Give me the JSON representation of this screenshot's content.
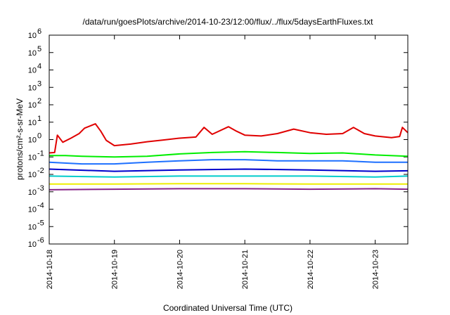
{
  "chart_data": {
    "type": "line",
    "title": "/data/run/goesPlots/archive/2014-10-23/12:00/flux/../flux/5daysEarthFluxes.txt",
    "xlabel": "Coordinated Universal Time (UTC)",
    "ylabel": "protons/cm²-s-sr-MeV",
    "y_scale": "log",
    "ylim": [
      1e-06,
      1000000.0
    ],
    "xlim": [
      "2014-10-18",
      "2014-10-23 12:00"
    ],
    "grid": false,
    "legend": "none",
    "y_ticks": [
      {
        "base": "10",
        "exp": "6"
      },
      {
        "base": "10",
        "exp": "5"
      },
      {
        "base": "10",
        "exp": "4"
      },
      {
        "base": "10",
        "exp": "3"
      },
      {
        "base": "10",
        "exp": "2"
      },
      {
        "base": "10",
        "exp": "1"
      },
      {
        "base": "10",
        "exp": "0"
      },
      {
        "base": "10",
        "exp": "-1"
      },
      {
        "base": "10",
        "exp": "-2"
      },
      {
        "base": "10",
        "exp": "-3"
      },
      {
        "base": "10",
        "exp": "-4"
      },
      {
        "base": "10",
        "exp": "-5"
      },
      {
        "base": "10",
        "exp": "-6"
      }
    ],
    "x_ticks": [
      "2014-10-18",
      "2014-10-19",
      "2014-10-20",
      "2014-10-21",
      "2014-10-22",
      "2014-10-23"
    ],
    "series": [
      {
        "color": "#e00000",
        "points": [
          [
            "2014-10-18 00:00",
            0.17
          ],
          [
            "2014-10-18 02:00",
            0.18
          ],
          [
            "2014-10-18 03:00",
            1.8
          ],
          [
            "2014-10-18 05:00",
            0.7
          ],
          [
            "2014-10-18 08:00",
            1.2
          ],
          [
            "2014-10-18 11:00",
            2.2
          ],
          [
            "2014-10-18 13:00",
            4.5
          ],
          [
            "2014-10-18 15:00",
            6.0
          ],
          [
            "2014-10-18 17:00",
            8.0
          ],
          [
            "2014-10-18 19:00",
            3.0
          ],
          [
            "2014-10-18 21:00",
            0.9
          ],
          [
            "2014-10-19 00:00",
            0.45
          ],
          [
            "2014-10-19 06:00",
            0.55
          ],
          [
            "2014-10-19 12:00",
            0.75
          ],
          [
            "2014-10-19 18:00",
            0.95
          ],
          [
            "2014-10-20 00:00",
            1.2
          ],
          [
            "2014-10-20 06:00",
            1.4
          ],
          [
            "2014-10-20 09:00",
            5.0
          ],
          [
            "2014-10-20 12:00",
            2.0
          ],
          [
            "2014-10-20 18:00",
            5.5
          ],
          [
            "2014-10-20 21:00",
            3.0
          ],
          [
            "2014-10-21 00:00",
            1.8
          ],
          [
            "2014-10-21 06:00",
            1.6
          ],
          [
            "2014-10-21 12:00",
            2.2
          ],
          [
            "2014-10-21 18:00",
            4.0
          ],
          [
            "2014-10-22 00:00",
            2.5
          ],
          [
            "2014-10-22 06:00",
            2.0
          ],
          [
            "2014-10-22 12:00",
            2.2
          ],
          [
            "2014-10-22 16:00",
            5.0
          ],
          [
            "2014-10-22 20:00",
            2.2
          ],
          [
            "2014-10-23 00:00",
            1.6
          ],
          [
            "2014-10-23 06:00",
            1.3
          ],
          [
            "2014-10-23 09:00",
            1.5
          ],
          [
            "2014-10-23 10:00",
            5.0
          ],
          [
            "2014-10-23 12:00",
            2.5
          ]
        ]
      },
      {
        "color": "#00ee00",
        "points": [
          [
            "2014-10-18 00:00",
            0.12
          ],
          [
            "2014-10-18 06:00",
            0.12
          ],
          [
            "2014-10-18 12:00",
            0.11
          ],
          [
            "2014-10-19 00:00",
            0.1
          ],
          [
            "2014-10-19 12:00",
            0.11
          ],
          [
            "2014-10-20 00:00",
            0.15
          ],
          [
            "2014-10-20 12:00",
            0.18
          ],
          [
            "2014-10-21 00:00",
            0.2
          ],
          [
            "2014-10-21 12:00",
            0.18
          ],
          [
            "2014-10-22 00:00",
            0.16
          ],
          [
            "2014-10-22 12:00",
            0.17
          ],
          [
            "2014-10-23 00:00",
            0.13
          ],
          [
            "2014-10-23 12:00",
            0.11
          ]
        ]
      },
      {
        "color": "#1e70ff",
        "points": [
          [
            "2014-10-18 00:00",
            0.05
          ],
          [
            "2014-10-18 12:00",
            0.04
          ],
          [
            "2014-10-19 00:00",
            0.04
          ],
          [
            "2014-10-19 12:00",
            0.05
          ],
          [
            "2014-10-20 00:00",
            0.06
          ],
          [
            "2014-10-20 12:00",
            0.07
          ],
          [
            "2014-10-21 00:00",
            0.07
          ],
          [
            "2014-10-21 12:00",
            0.06
          ],
          [
            "2014-10-22 00:00",
            0.06
          ],
          [
            "2014-10-22 12:00",
            0.06
          ],
          [
            "2014-10-23 00:00",
            0.05
          ],
          [
            "2014-10-23 12:00",
            0.05
          ]
        ]
      },
      {
        "color": "#0000cc",
        "points": [
          [
            "2014-10-18 00:00",
            0.02
          ],
          [
            "2014-10-19 00:00",
            0.015
          ],
          [
            "2014-10-20 00:00",
            0.018
          ],
          [
            "2014-10-21 00:00",
            0.02
          ],
          [
            "2014-10-22 00:00",
            0.018
          ],
          [
            "2014-10-23 00:00",
            0.015
          ],
          [
            "2014-10-23 12:00",
            0.016
          ]
        ]
      },
      {
        "color": "#00cccc",
        "points": [
          [
            "2014-10-18 00:00",
            0.008
          ],
          [
            "2014-10-19 00:00",
            0.007
          ],
          [
            "2014-10-20 00:00",
            0.008
          ],
          [
            "2014-10-21 00:00",
            0.008
          ],
          [
            "2014-10-22 00:00",
            0.008
          ],
          [
            "2014-10-23 00:00",
            0.007
          ],
          [
            "2014-10-23 12:00",
            0.008
          ]
        ]
      },
      {
        "color": "#eeee00",
        "points": [
          [
            "2014-10-18 00:00",
            0.0028
          ],
          [
            "2014-10-19 00:00",
            0.0028
          ],
          [
            "2014-10-20 00:00",
            0.0029
          ],
          [
            "2014-10-21 00:00",
            0.0029
          ],
          [
            "2014-10-22 00:00",
            0.0028
          ],
          [
            "2014-10-23 00:00",
            0.0028
          ],
          [
            "2014-10-23 12:00",
            0.0028
          ]
        ]
      },
      {
        "color": "#882288",
        "points": [
          [
            "2014-10-18 00:00",
            0.0013
          ],
          [
            "2014-10-19 00:00",
            0.0014
          ],
          [
            "2014-10-20 00:00",
            0.0015
          ],
          [
            "2014-10-21 00:00",
            0.0015
          ],
          [
            "2014-10-22 00:00",
            0.0014
          ],
          [
            "2014-10-23 00:00",
            0.0015
          ],
          [
            "2014-10-23 12:00",
            0.0014
          ]
        ]
      }
    ]
  }
}
